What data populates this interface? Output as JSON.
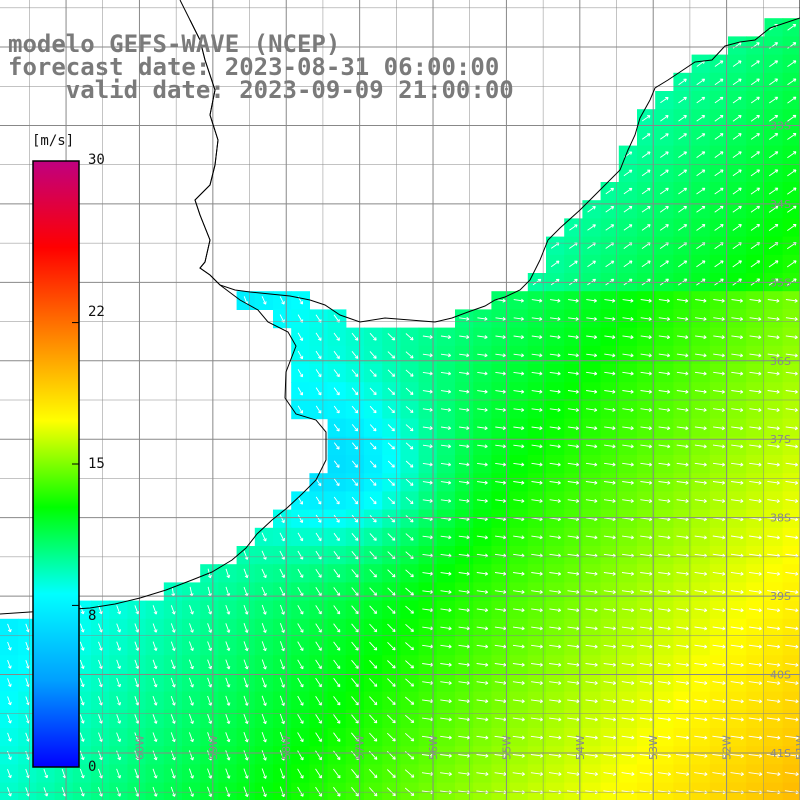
{
  "title": {
    "line1": "modelo GEFS-WAVE (NCEP)",
    "line2": "forecast date: 2023-08-31 06:00:00",
    "line3": "valid date: 2023-09-09 21:00:00"
  },
  "colorbar": {
    "unit": "[m/s]",
    "ticks": [
      "30",
      "22",
      "15",
      "8",
      "0"
    ],
    "tick_values": [
      30,
      22,
      15,
      8,
      0
    ],
    "vmin": 0,
    "vmax": 30,
    "colors": [
      "#0000ff",
      "#00a0ff",
      "#00ffff",
      "#00ff00",
      "#ffff00",
      "#ff8000",
      "#ff0000",
      "#c00080"
    ]
  },
  "map": {
    "lat_labels": [
      "33S",
      "34S",
      "35S",
      "36S",
      "37S",
      "38S",
      "39S",
      "40S",
      "41S"
    ],
    "lat_values": [
      -33,
      -34,
      -35,
      -36,
      -37,
      -38,
      -39,
      -40,
      -41
    ],
    "lon_labels": [
      "61W",
      "60W",
      "59W",
      "58W",
      "57W",
      "56W",
      "55W",
      "54W",
      "53W",
      "52W",
      "51W"
    ],
    "lon_values": [
      -61,
      -60,
      -59,
      -58,
      -57,
      -56,
      -55,
      -54,
      -53,
      -52,
      -51
    ],
    "lat_range": [
      -41.6,
      -31.4
    ],
    "lon_range": [
      -61.9,
      -51.0
    ],
    "land_color": "#ffffff",
    "grid_color": "#888888",
    "coast_color": "#000000",
    "arrow_color": "#ffffff",
    "variable": "wind speed and direction"
  }
}
